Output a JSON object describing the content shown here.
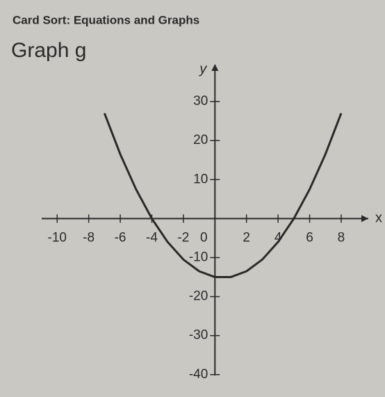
{
  "chart_data": {
    "type": "line",
    "header": "Card Sort: Equations and Graphs",
    "title": "Graph g",
    "x_label": "x",
    "y_label": "y",
    "x": [
      -7,
      -6,
      -5,
      -4,
      -3,
      -2,
      -1,
      0,
      1,
      2,
      3,
      4,
      5,
      6,
      7,
      8
    ],
    "series": [
      {
        "name": "g",
        "color": "#2a2a2a",
        "values": [
          27,
          16.5,
          7.5,
          0,
          -6,
          -10.5,
          -13.5,
          -15,
          -15,
          -13.5,
          -10.5,
          -6,
          0,
          7.5,
          16.5,
          27
        ]
      }
    ],
    "xlim": [
      -11.2,
      9.5
    ],
    "ylim": [
      -42,
      40
    ],
    "xticks": [
      -10,
      -8,
      -6,
      -4,
      -2,
      0,
      2,
      4,
      6,
      8
    ],
    "yticks": [
      -40,
      -30,
      -20,
      -10,
      10,
      20,
      30
    ],
    "grid": false
  }
}
